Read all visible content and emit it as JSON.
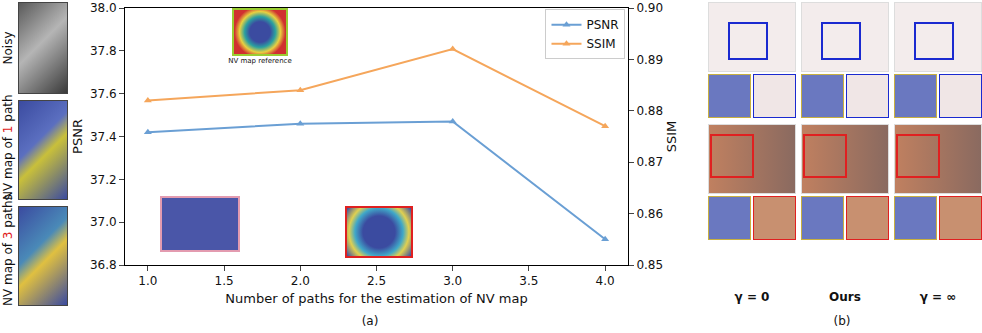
{
  "chart_data": {
    "type": "line",
    "x": [
      1,
      2,
      3,
      4
    ],
    "series": [
      {
        "name": "PSNR",
        "color": "#6a9fd4",
        "marker": "triangle-up",
        "values": [
          37.42,
          37.46,
          37.47,
          36.92
        ]
      },
      {
        "name": "SSIM",
        "color": "#f5a65b",
        "marker": "triangle-up",
        "axis": "y2",
        "values": [
          0.882,
          0.884,
          0.892,
          0.877
        ]
      }
    ],
    "x_label": "Number of paths for the estimation of NV map",
    "y_label": "PSNR",
    "y2_label": "SSIM",
    "xlim": [
      0.85,
      4.15
    ],
    "xticks": [
      {
        "value": 1,
        "label": "1.0"
      },
      1.5,
      {
        "value": 2,
        "label": "2.0"
      },
      2.5,
      {
        "value": 3,
        "label": "3.0"
      },
      3.5,
      {
        "value": 4,
        "label": "4.0"
      }
    ],
    "ylim": [
      36.8,
      38.0
    ],
    "yticks": [
      36.8,
      {
        "value": 37,
        "label": "37.0"
      },
      37.2,
      37.4,
      37.6,
      37.8,
      {
        "value": 38,
        "label": "38.0"
      }
    ],
    "y2lim": [
      0.85,
      0.9
    ],
    "y2ticks": [
      0.85,
      0.86,
      0.87,
      0.88,
      0.89,
      {
        "value": 0.9,
        "label": "0.90"
      }
    ],
    "legend": "upper right",
    "grid": false
  },
  "figure": {
    "left_labels": [
      "Noisy",
      "NV map of 1 path",
      "NV map of 3 paths"
    ],
    "inset_label": "NV map reference",
    "panel_labels": [
      "(a)",
      "(b)"
    ],
    "b_columns": [
      "γ = 0",
      "Ours",
      "γ = ∞"
    ]
  }
}
